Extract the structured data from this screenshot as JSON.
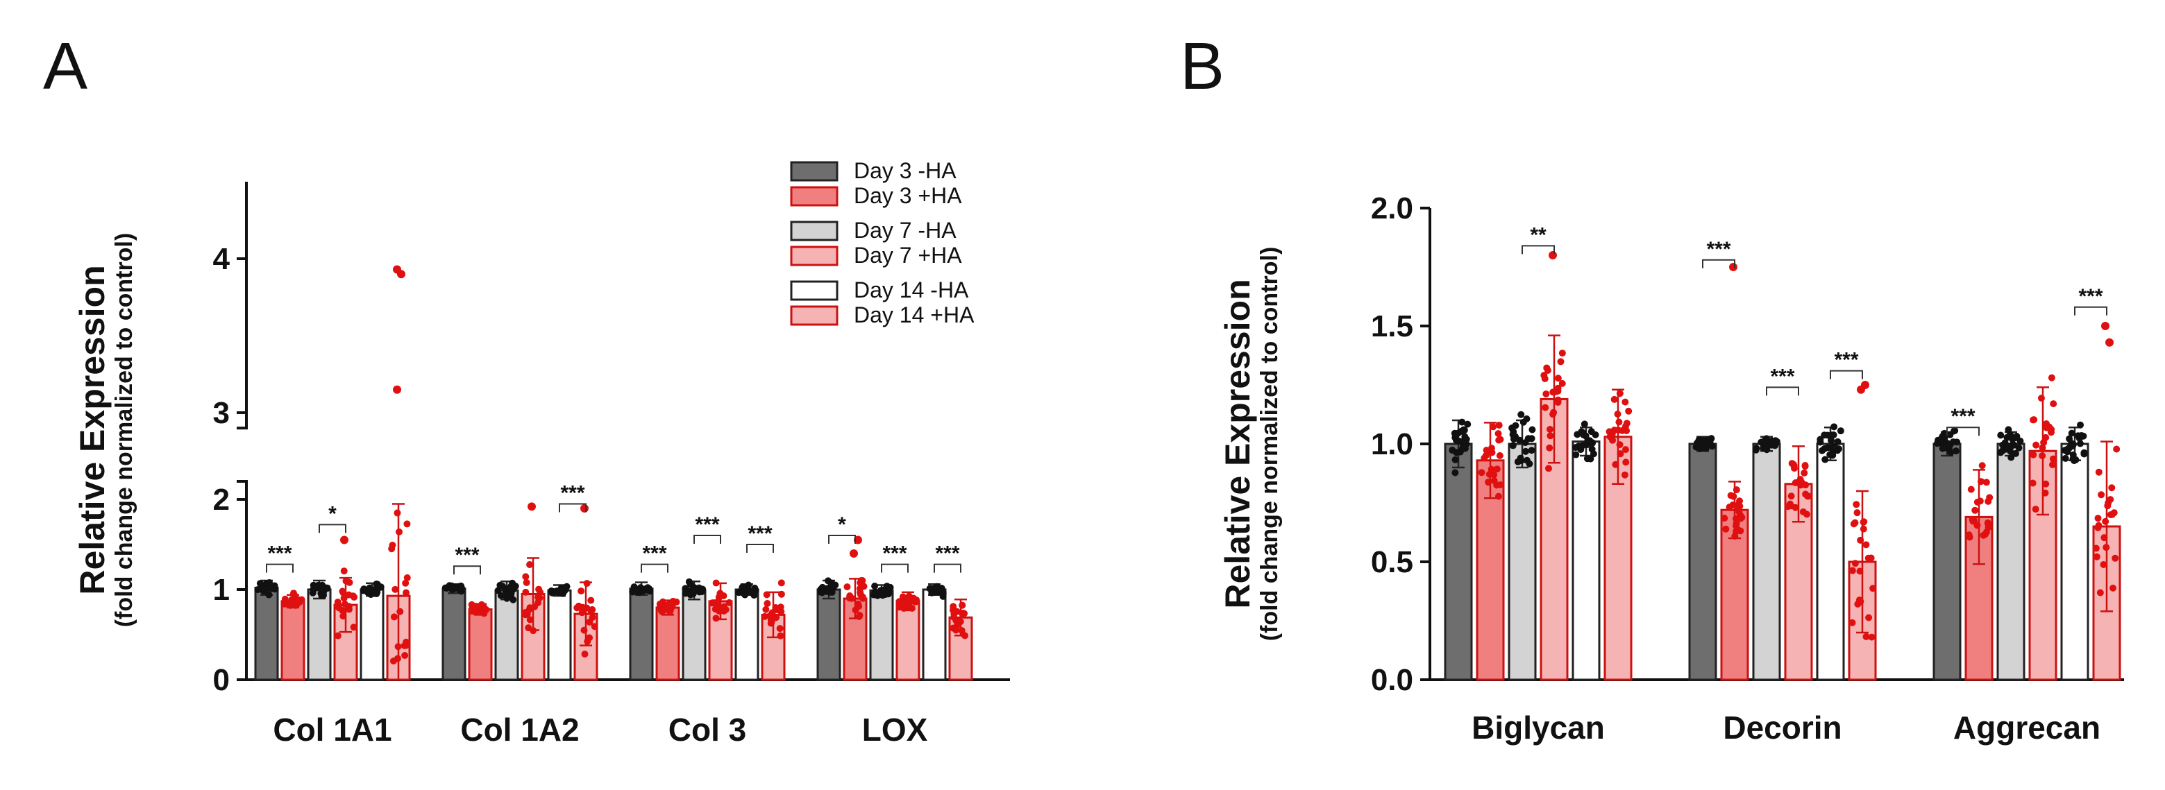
{
  "chart_data": [
    {
      "panel": "A",
      "type": "bar",
      "ylabel": "Relative Expression",
      "ylabel_sub": "(fold change normalized to control)",
      "y_segments": [
        [
          0,
          2.2
        ],
        [
          2.9,
          4.5
        ]
      ],
      "y_ticks": [
        0,
        1,
        2,
        3,
        4
      ],
      "categories": [
        "Col 1A1",
        "Col 1A2",
        "Col 3",
        "LOX"
      ],
      "legend": [
        "Day 3 -HA",
        "Day 3 +HA",
        "Day 7 -HA",
        "Day 7 +HA",
        "Day 14 -HA",
        "Day 14 +HA"
      ],
      "series": [
        {
          "name": "Day 3 -HA",
          "fill": "#6e6e6e",
          "stroke": "#222222",
          "dot": "#111111",
          "values": [
            1.02,
            1.01,
            1.01,
            1.0
          ],
          "sd": [
            0.08,
            0.05,
            0.07,
            0.1
          ],
          "range": [
            0.85,
            1.15
          ]
        },
        {
          "name": "Day 3 +HA",
          "fill": "#f08080",
          "stroke": "#cc1111",
          "dot": "#e01010",
          "values": [
            0.87,
            0.78,
            0.8,
            0.9
          ],
          "sd": [
            0.07,
            0.06,
            0.08,
            0.22
          ],
          "range": [
            0.7,
            1.1
          ]
        },
        {
          "name": "Day 7 -HA",
          "fill": "#d3d3d3",
          "stroke": "#222222",
          "dot": "#111111",
          "values": [
            1.0,
            0.99,
            0.99,
            0.99
          ],
          "sd": [
            0.1,
            0.1,
            0.1,
            0.06
          ],
          "range": [
            0.85,
            1.25
          ]
        },
        {
          "name": "Day 7 +HA",
          "fill": "#f6b3b3",
          "stroke": "#cc1111",
          "dot": "#e01010",
          "values": [
            0.83,
            0.95,
            0.87,
            0.87
          ],
          "sd": [
            0.3,
            0.4,
            0.2,
            0.1
          ],
          "range": [
            0.35,
            1.9
          ]
        },
        {
          "name": "Day 14 -HA",
          "fill": "#ffffff",
          "stroke": "#222222",
          "dot": "#111111",
          "values": [
            1.0,
            0.99,
            1.0,
            1.0
          ],
          "sd": [
            0.07,
            0.06,
            0.06,
            0.06
          ],
          "range": [
            0.9,
            1.15
          ]
        },
        {
          "name": "Day 14 +HA",
          "fill": "#f6b3b3",
          "stroke": "#cc1111",
          "dot": "#e01010",
          "values": [
            0.93,
            0.73,
            0.72,
            0.69
          ],
          "sd": [
            1.02,
            0.35,
            0.25,
            0.2
          ],
          "range": [
            0.2,
            1.9
          ]
        }
      ],
      "outliers": [
        {
          "series": 5,
          "category": 0,
          "values": [
            3.93,
            3.9,
            3.15
          ]
        },
        {
          "series": 5,
          "category": 1,
          "values": [
            1.9
          ]
        },
        {
          "series": 3,
          "category": 1,
          "values": [
            1.92
          ]
        },
        {
          "series": 3,
          "category": 0,
          "values": [
            1.55
          ]
        },
        {
          "series": 1,
          "category": 3,
          "values": [
            1.4,
            1.55
          ]
        }
      ],
      "significance": [
        {
          "category": 0,
          "a": 0,
          "b": 1,
          "y": 1.28,
          "label": "***"
        },
        {
          "category": 0,
          "a": 2,
          "b": 3,
          "y": 1.72,
          "label": "*"
        },
        {
          "category": 1,
          "a": 0,
          "b": 1,
          "y": 1.26,
          "label": "***"
        },
        {
          "category": 1,
          "a": 4,
          "b": 5,
          "y": 1.95,
          "label": "***"
        },
        {
          "category": 2,
          "a": 0,
          "b": 1,
          "y": 1.28,
          "label": "***"
        },
        {
          "category": 2,
          "a": 2,
          "b": 3,
          "y": 1.6,
          "label": "***"
        },
        {
          "category": 2,
          "a": 4,
          "b": 5,
          "y": 1.5,
          "label": "***"
        },
        {
          "category": 3,
          "a": 0,
          "b": 1,
          "y": 1.6,
          "label": "*"
        },
        {
          "category": 3,
          "a": 2,
          "b": 3,
          "y": 1.28,
          "label": "***"
        },
        {
          "category": 3,
          "a": 4,
          "b": 5,
          "y": 1.28,
          "label": "***"
        }
      ]
    },
    {
      "panel": "B",
      "type": "bar",
      "ylabel": "Relative Expression",
      "ylabel_sub": "(fold change normalized to control)",
      "ylim": [
        0,
        2.0
      ],
      "y_ticks": [
        0.0,
        0.5,
        1.0,
        1.5,
        2.0
      ],
      "categories": [
        "Biglycan",
        "Decorin",
        "Aggrecan"
      ],
      "series": [
        {
          "name": "Day 3 -HA",
          "fill": "#6e6e6e",
          "stroke": "#222222",
          "dot": "#111111",
          "values": [
            1.0,
            1.0,
            1.0
          ],
          "sd": [
            0.1,
            0.03,
            0.05
          ],
          "range": [
            0.75,
            1.3
          ]
        },
        {
          "name": "Day 3 +HA",
          "fill": "#f08080",
          "stroke": "#cc1111",
          "dot": "#e01010",
          "values": [
            0.93,
            0.72,
            0.69
          ],
          "sd": [
            0.16,
            0.12,
            0.2
          ],
          "range": [
            0.35,
            1.2
          ]
        },
        {
          "name": "Day 7 -HA",
          "fill": "#d3d3d3",
          "stroke": "#222222",
          "dot": "#111111",
          "values": [
            1.0,
            1.0,
            1.0
          ],
          "sd": [
            0.1,
            0.03,
            0.05
          ],
          "range": [
            0.75,
            1.2
          ]
        },
        {
          "name": "Day 7 +HA",
          "fill": "#f6b3b3",
          "stroke": "#cc1111",
          "dot": "#e01010",
          "values": [
            1.19,
            0.83,
            0.97
          ],
          "sd": [
            0.27,
            0.16,
            0.27
          ],
          "range": [
            0.35,
            1.55
          ]
        },
        {
          "name": "Day 14 -HA",
          "fill": "#ffffff",
          "stroke": "#222222",
          "dot": "#111111",
          "values": [
            1.01,
            1.0,
            1.0
          ],
          "sd": [
            0.06,
            0.07,
            0.07
          ],
          "range": [
            0.8,
            1.15
          ]
        },
        {
          "name": "Day 14 +HA",
          "fill": "#f6b3b3",
          "stroke": "#cc1111",
          "dot": "#e01010",
          "values": [
            1.03,
            0.5,
            0.65
          ],
          "sd": [
            0.2,
            0.3,
            0.36
          ],
          "range": [
            0.1,
            1.45
          ]
        }
      ],
      "outliers": [
        {
          "series": 1,
          "category": 1,
          "values": [
            1.75
          ]
        },
        {
          "series": 3,
          "category": 0,
          "values": [
            1.8
          ]
        },
        {
          "series": 5,
          "category": 1,
          "values": [
            1.23,
            1.25
          ]
        },
        {
          "series": 5,
          "category": 2,
          "values": [
            1.5,
            1.43
          ]
        }
      ],
      "significance": [
        {
          "category": 0,
          "a": 2,
          "b": 3,
          "y": 1.84,
          "label": "**"
        },
        {
          "category": 1,
          "a": 0,
          "b": 1,
          "y": 1.78,
          "label": "***"
        },
        {
          "category": 1,
          "a": 2,
          "b": 3,
          "y": 1.24,
          "label": "***"
        },
        {
          "category": 1,
          "a": 4,
          "b": 5,
          "y": 1.31,
          "label": "***"
        },
        {
          "category": 2,
          "a": 0,
          "b": 1,
          "y": 1.07,
          "label": "***"
        },
        {
          "category": 2,
          "a": 4,
          "b": 5,
          "y": 1.58,
          "label": "***"
        }
      ]
    }
  ],
  "panels": {
    "a_label": "A",
    "b_label": "B"
  }
}
